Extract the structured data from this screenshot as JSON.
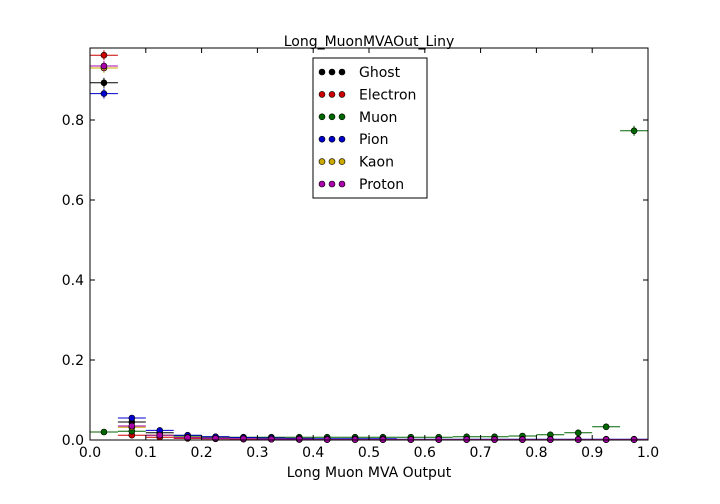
{
  "chart_data": {
    "type": "scatter",
    "title": "Long_MuonMVAOut_Liny",
    "xlabel": "Long Muon MVA Output",
    "ylabel": "",
    "xlim": [
      0.0,
      1.0
    ],
    "ylim": [
      0.0,
      0.98
    ],
    "xticks": [
      "0.0",
      "0.1",
      "0.2",
      "0.3",
      "0.4",
      "0.5",
      "0.6",
      "0.7",
      "0.8",
      "0.9",
      "1.0"
    ],
    "yticks": [
      "0.0",
      "0.2",
      "0.4",
      "0.6",
      "0.8"
    ],
    "xtick_values": [
      0.0,
      0.1,
      0.2,
      0.3,
      0.4,
      0.5,
      0.6,
      0.7,
      0.8,
      0.9,
      1.0
    ],
    "ytick_values": [
      0.0,
      0.2,
      0.4,
      0.6,
      0.8
    ],
    "bin_centers": [
      0.025,
      0.075,
      0.125,
      0.175,
      0.225,
      0.275,
      0.325,
      0.375,
      0.425,
      0.475,
      0.525,
      0.575,
      0.625,
      0.675,
      0.725,
      0.775,
      0.825,
      0.875,
      0.925,
      0.975
    ],
    "bin_half_width": 0.025,
    "legend_position": "top-center",
    "series": [
      {
        "name": "Ghost",
        "color": "#000000",
        "values": [
          0.893,
          0.045,
          0.018,
          0.01,
          0.007,
          0.006,
          0.005,
          0.003,
          0.002,
          0.002,
          0.001,
          0.001,
          0.001,
          0.001,
          0.001,
          0.001,
          0.001,
          0.001,
          0.001,
          0.001
        ]
      },
      {
        "name": "Electron",
        "color": "#cc0000",
        "values": [
          0.962,
          0.012,
          0.007,
          0.004,
          0.003,
          0.002,
          0.002,
          0.001,
          0.001,
          0.001,
          0.001,
          0.001,
          0.001,
          0.001,
          0.001,
          0.001,
          0.001,
          0.001,
          0.001,
          0.001
        ]
      },
      {
        "name": "Muon",
        "color": "#006600",
        "values": [
          0.02,
          0.022,
          0.012,
          0.01,
          0.008,
          0.007,
          0.007,
          0.007,
          0.007,
          0.007,
          0.007,
          0.007,
          0.007,
          0.008,
          0.008,
          0.01,
          0.013,
          0.018,
          0.033,
          0.773
        ]
      },
      {
        "name": "Pion",
        "color": "#0000cc",
        "values": [
          0.866,
          0.055,
          0.024,
          0.012,
          0.008,
          0.006,
          0.005,
          0.004,
          0.003,
          0.003,
          0.003,
          0.002,
          0.002,
          0.002,
          0.002,
          0.002,
          0.002,
          0.002,
          0.002,
          0.002
        ]
      },
      {
        "name": "Kaon",
        "color": "#ccaa00",
        "values": [
          0.93,
          0.032,
          0.012,
          0.007,
          0.004,
          0.003,
          0.002,
          0.002,
          0.001,
          0.001,
          0.001,
          0.001,
          0.001,
          0.001,
          0.001,
          0.001,
          0.001,
          0.001,
          0.001,
          0.001
        ]
      },
      {
        "name": "Proton",
        "color": "#aa00aa",
        "values": [
          0.935,
          0.035,
          0.012,
          0.006,
          0.004,
          0.003,
          0.002,
          0.002,
          0.001,
          0.001,
          0.001,
          0.001,
          0.001,
          0.001,
          0.001,
          0.001,
          0.001,
          0.001,
          0.001,
          0.001
        ]
      }
    ]
  }
}
